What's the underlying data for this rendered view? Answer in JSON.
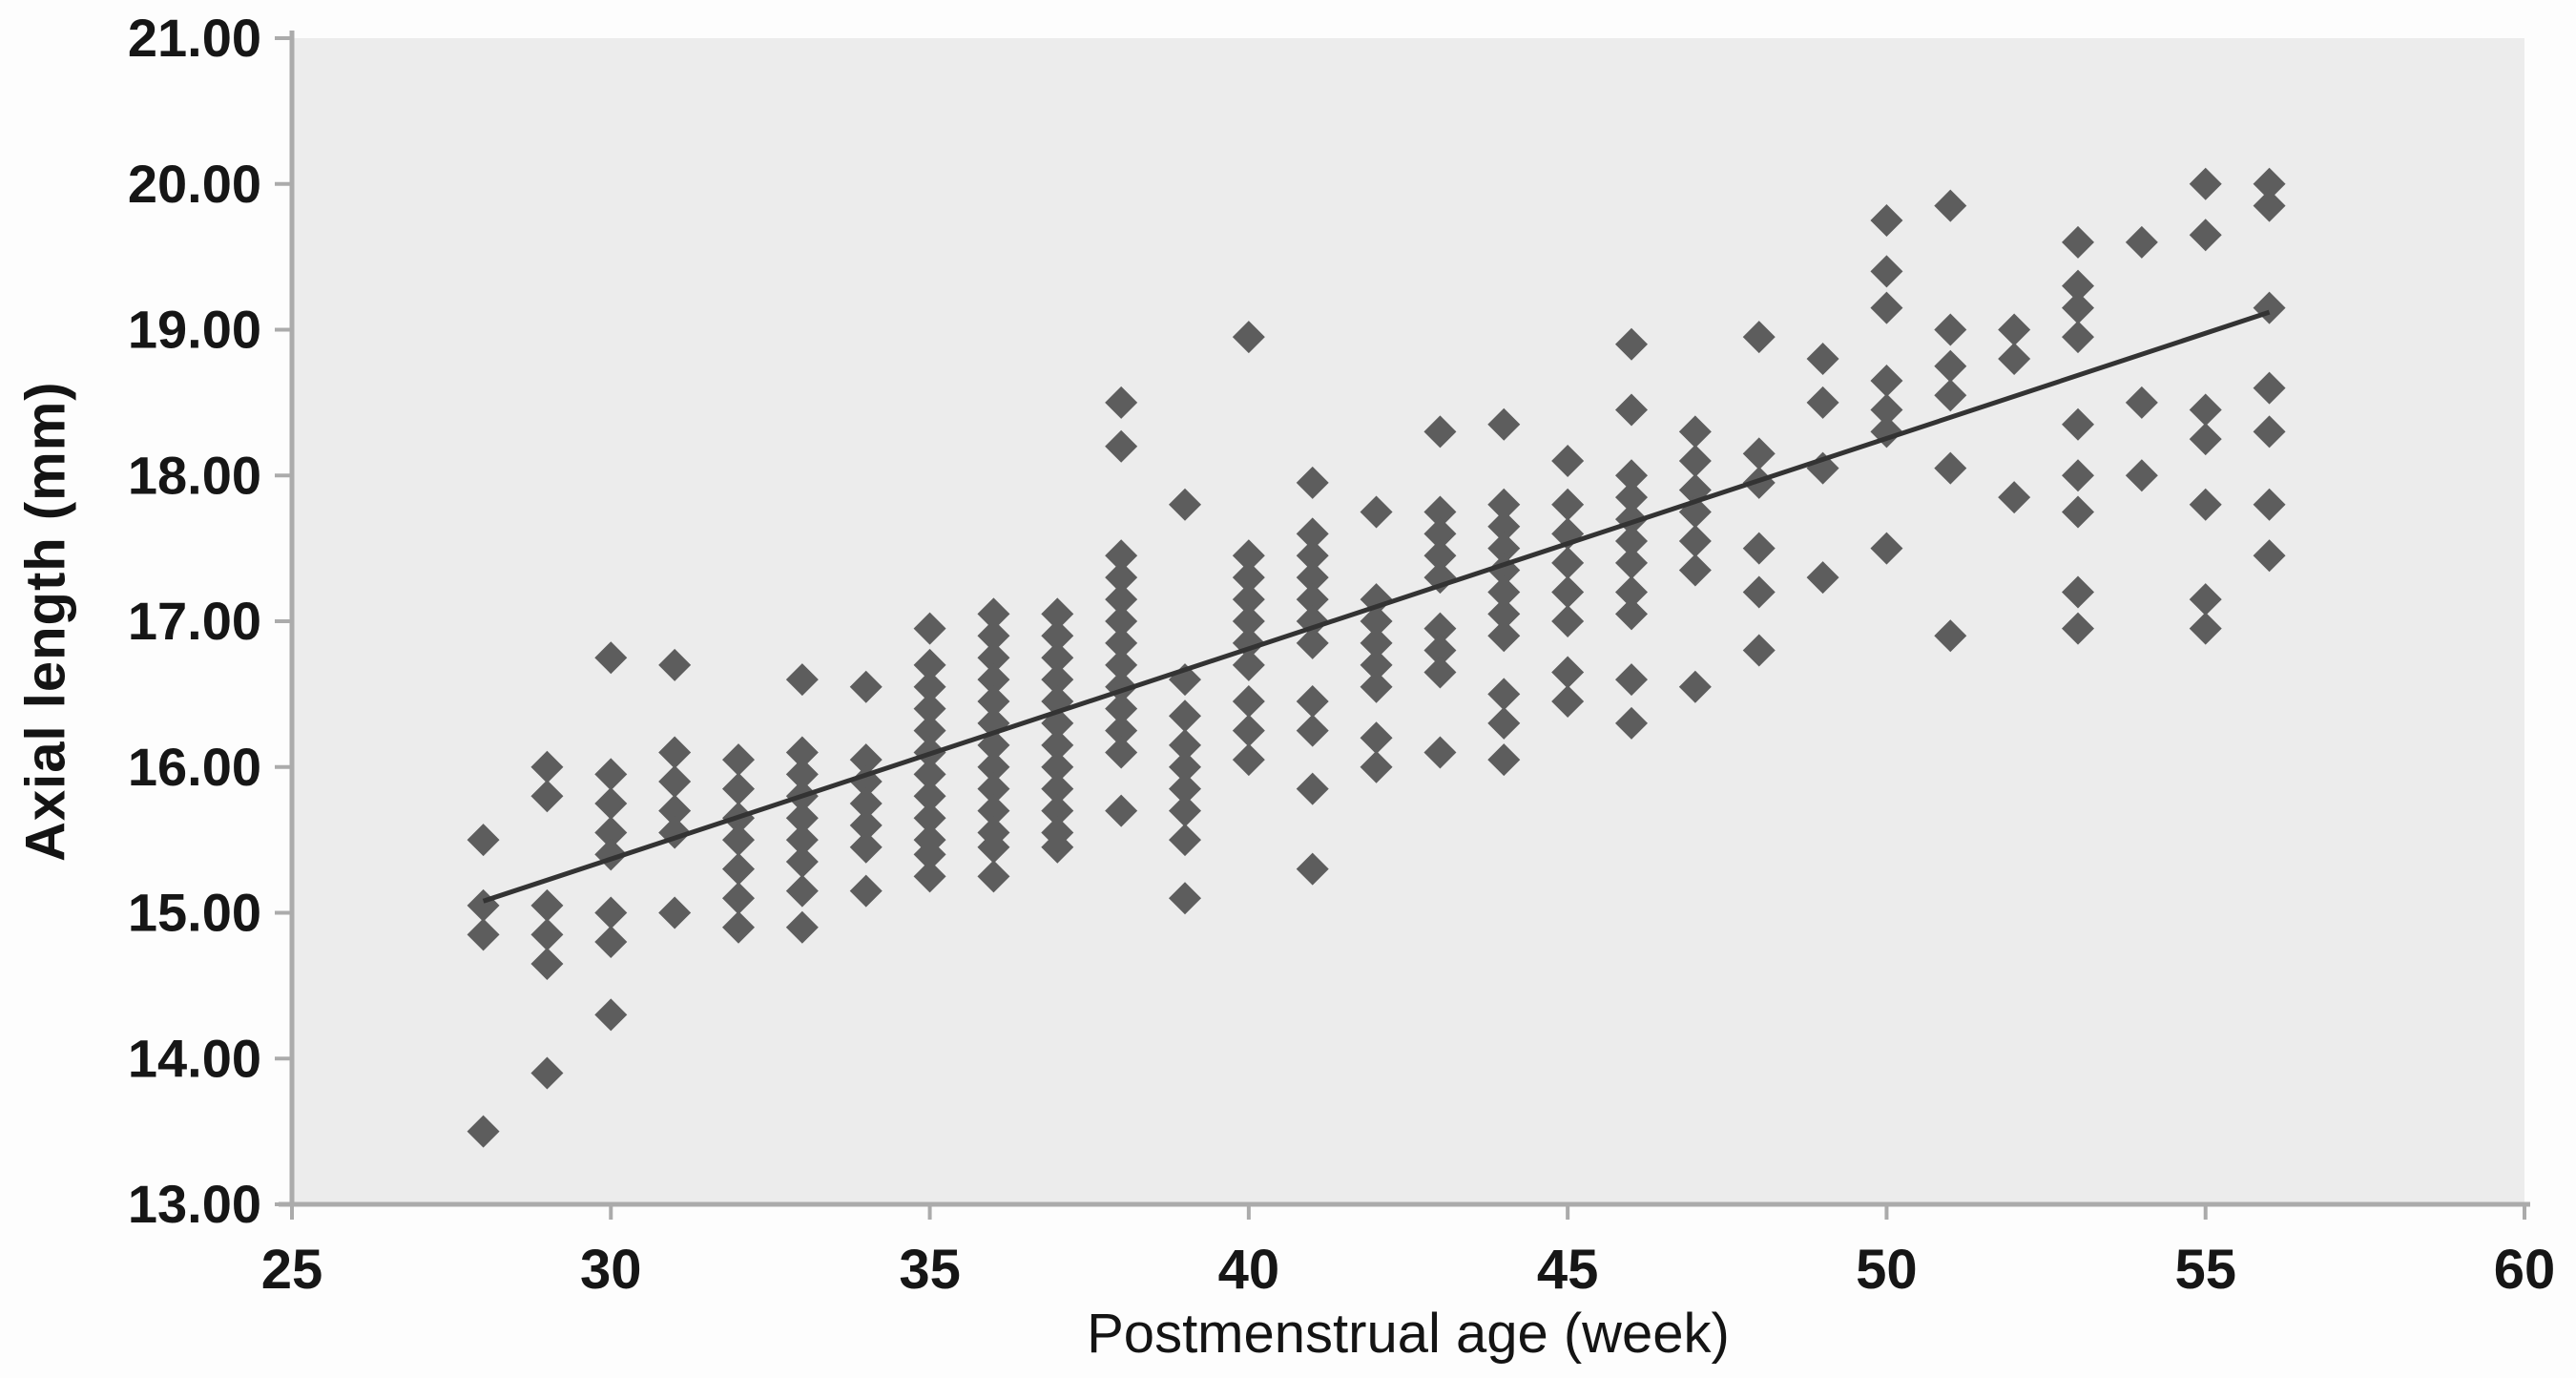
{
  "chart_data": {
    "type": "scatter",
    "title": "",
    "xlabel": "Postmenstrual age (week)",
    "ylabel": "Axial length (mm)",
    "xlim": [
      25,
      60
    ],
    "ylim": [
      13,
      21
    ],
    "grid": false,
    "legend": false,
    "x_ticks": [
      "25",
      "30",
      "35",
      "40",
      "45",
      "50",
      "55",
      "60"
    ],
    "x_tick_values": [
      25,
      30,
      35,
      40,
      45,
      50,
      55,
      60
    ],
    "y_ticks": [
      "21.00",
      "20.00",
      "19.00",
      "18.00",
      "17.00",
      "16.00",
      "15.00",
      "14.00",
      "13.00"
    ],
    "y_tick_values": [
      21,
      20,
      19,
      18,
      17,
      16,
      15,
      14,
      13
    ],
    "colors": {
      "marker": "#5d5d5d",
      "trend_line": "#333333",
      "plot_bg": "#ececec",
      "axis": "#ababab",
      "tick_label": "#161616"
    },
    "trend_line": {
      "x1": 28,
      "y1": 15.08,
      "x2": 56,
      "y2": 19.12,
      "color": "#333333"
    },
    "series": [
      {
        "name": "axial-length-measurements",
        "marker": "diamond",
        "color": "#5d5d5d",
        "points": [
          [
            28,
            15.5
          ],
          [
            28,
            15.05
          ],
          [
            28,
            14.85
          ],
          [
            28,
            13.5
          ],
          [
            29,
            16.0
          ],
          [
            29,
            15.8
          ],
          [
            29,
            15.05
          ],
          [
            29,
            14.85
          ],
          [
            29,
            14.65
          ],
          [
            29,
            13.9
          ],
          [
            30,
            16.75
          ],
          [
            30,
            15.95
          ],
          [
            30,
            15.75
          ],
          [
            30,
            15.55
          ],
          [
            30,
            15.4
          ],
          [
            30,
            15.0
          ],
          [
            30,
            14.8
          ],
          [
            30,
            14.3
          ],
          [
            31,
            16.7
          ],
          [
            31,
            16.1
          ],
          [
            31,
            15.9
          ],
          [
            31,
            15.7
          ],
          [
            31,
            15.55
          ],
          [
            31,
            15.0
          ],
          [
            32,
            16.05
          ],
          [
            32,
            15.85
          ],
          [
            32,
            15.65
          ],
          [
            32,
            15.5
          ],
          [
            32,
            15.3
          ],
          [
            32,
            15.1
          ],
          [
            32,
            14.9
          ],
          [
            33,
            16.6
          ],
          [
            33,
            16.1
          ],
          [
            33,
            15.95
          ],
          [
            33,
            15.8
          ],
          [
            33,
            15.65
          ],
          [
            33,
            15.5
          ],
          [
            33,
            15.35
          ],
          [
            33,
            15.15
          ],
          [
            33,
            14.9
          ],
          [
            34,
            16.55
          ],
          [
            34,
            16.05
          ],
          [
            34,
            15.9
          ],
          [
            34,
            15.75
          ],
          [
            34,
            15.6
          ],
          [
            34,
            15.45
          ],
          [
            34,
            15.15
          ],
          [
            35,
            16.95
          ],
          [
            35,
            16.7
          ],
          [
            35,
            16.55
          ],
          [
            35,
            16.4
          ],
          [
            35,
            16.25
          ],
          [
            35,
            16.1
          ],
          [
            35,
            15.95
          ],
          [
            35,
            15.8
          ],
          [
            35,
            15.65
          ],
          [
            35,
            15.5
          ],
          [
            35,
            15.4
          ],
          [
            35,
            15.25
          ],
          [
            36,
            17.05
          ],
          [
            36,
            16.9
          ],
          [
            36,
            16.75
          ],
          [
            36,
            16.6
          ],
          [
            36,
            16.45
          ],
          [
            36,
            16.3
          ],
          [
            36,
            16.15
          ],
          [
            36,
            16.0
          ],
          [
            36,
            15.85
          ],
          [
            36,
            15.7
          ],
          [
            36,
            15.55
          ],
          [
            36,
            15.45
          ],
          [
            36,
            15.25
          ],
          [
            37,
            17.05
          ],
          [
            37,
            16.9
          ],
          [
            37,
            16.75
          ],
          [
            37,
            16.6
          ],
          [
            37,
            16.45
          ],
          [
            37,
            16.3
          ],
          [
            37,
            16.15
          ],
          [
            37,
            16.0
          ],
          [
            37,
            15.85
          ],
          [
            37,
            15.7
          ],
          [
            37,
            15.55
          ],
          [
            37,
            15.45
          ],
          [
            38,
            18.5
          ],
          [
            38,
            18.2
          ],
          [
            38,
            17.45
          ],
          [
            38,
            17.3
          ],
          [
            38,
            17.15
          ],
          [
            38,
            17.0
          ],
          [
            38,
            16.85
          ],
          [
            38,
            16.7
          ],
          [
            38,
            16.55
          ],
          [
            38,
            16.4
          ],
          [
            38,
            16.25
          ],
          [
            38,
            16.1
          ],
          [
            38,
            15.7
          ],
          [
            39,
            17.8
          ],
          [
            39,
            16.6
          ],
          [
            39,
            16.35
          ],
          [
            39,
            16.15
          ],
          [
            39,
            16.0
          ],
          [
            39,
            15.85
          ],
          [
            39,
            15.7
          ],
          [
            39,
            15.5
          ],
          [
            39,
            15.1
          ],
          [
            40,
            18.95
          ],
          [
            40,
            17.45
          ],
          [
            40,
            17.3
          ],
          [
            40,
            17.15
          ],
          [
            40,
            17.0
          ],
          [
            40,
            16.85
          ],
          [
            40,
            16.7
          ],
          [
            40,
            16.45
          ],
          [
            40,
            16.25
          ],
          [
            40,
            16.05
          ],
          [
            41,
            17.95
          ],
          [
            41,
            17.6
          ],
          [
            41,
            17.45
          ],
          [
            41,
            17.3
          ],
          [
            41,
            17.15
          ],
          [
            41,
            17.0
          ],
          [
            41,
            16.85
          ],
          [
            41,
            16.45
          ],
          [
            41,
            16.25
          ],
          [
            41,
            15.85
          ],
          [
            41,
            15.3
          ],
          [
            42,
            17.75
          ],
          [
            42,
            17.15
          ],
          [
            42,
            17.0
          ],
          [
            42,
            16.85
          ],
          [
            42,
            16.7
          ],
          [
            42,
            16.55
          ],
          [
            42,
            16.2
          ],
          [
            42,
            16.0
          ],
          [
            43,
            18.3
          ],
          [
            43,
            17.75
          ],
          [
            43,
            17.6
          ],
          [
            43,
            17.45
          ],
          [
            43,
            17.3
          ],
          [
            43,
            16.95
          ],
          [
            43,
            16.8
          ],
          [
            43,
            16.65
          ],
          [
            43,
            16.1
          ],
          [
            44,
            18.35
          ],
          [
            44,
            17.8
          ],
          [
            44,
            17.65
          ],
          [
            44,
            17.5
          ],
          [
            44,
            17.35
          ],
          [
            44,
            17.2
          ],
          [
            44,
            17.05
          ],
          [
            44,
            16.9
          ],
          [
            44,
            16.5
          ],
          [
            44,
            16.3
          ],
          [
            44,
            16.05
          ],
          [
            45,
            18.1
          ],
          [
            45,
            17.8
          ],
          [
            45,
            17.6
          ],
          [
            45,
            17.4
          ],
          [
            45,
            17.2
          ],
          [
            45,
            17.0
          ],
          [
            45,
            16.65
          ],
          [
            45,
            16.45
          ],
          [
            46,
            18.9
          ],
          [
            46,
            18.45
          ],
          [
            46,
            18.0
          ],
          [
            46,
            17.85
          ],
          [
            46,
            17.7
          ],
          [
            46,
            17.55
          ],
          [
            46,
            17.4
          ],
          [
            46,
            17.2
          ],
          [
            46,
            17.05
          ],
          [
            46,
            16.6
          ],
          [
            46,
            16.3
          ],
          [
            47,
            18.3
          ],
          [
            47,
            18.1
          ],
          [
            47,
            17.9
          ],
          [
            47,
            17.75
          ],
          [
            47,
            17.55
          ],
          [
            47,
            17.35
          ],
          [
            47,
            16.55
          ],
          [
            48,
            18.95
          ],
          [
            48,
            18.15
          ],
          [
            48,
            17.95
          ],
          [
            48,
            17.5
          ],
          [
            48,
            17.2
          ],
          [
            48,
            16.8
          ],
          [
            49,
            18.8
          ],
          [
            49,
            18.5
          ],
          [
            49,
            18.05
          ],
          [
            49,
            17.3
          ],
          [
            50,
            19.75
          ],
          [
            50,
            19.4
          ],
          [
            50,
            19.15
          ],
          [
            50,
            18.65
          ],
          [
            50,
            18.45
          ],
          [
            50,
            18.3
          ],
          [
            50,
            17.5
          ],
          [
            51,
            19.85
          ],
          [
            51,
            19.0
          ],
          [
            51,
            18.75
          ],
          [
            51,
            18.55
          ],
          [
            51,
            18.05
          ],
          [
            51,
            16.9
          ],
          [
            52,
            19.0
          ],
          [
            52,
            18.8
          ],
          [
            52,
            17.85
          ],
          [
            53,
            19.6
          ],
          [
            53,
            19.3
          ],
          [
            53,
            19.15
          ],
          [
            53,
            18.95
          ],
          [
            53,
            18.35
          ],
          [
            53,
            18.0
          ],
          [
            53,
            17.75
          ],
          [
            53,
            17.2
          ],
          [
            53,
            16.95
          ],
          [
            54,
            19.6
          ],
          [
            54,
            18.5
          ],
          [
            54,
            18.0
          ],
          [
            55,
            20.0
          ],
          [
            55,
            19.65
          ],
          [
            55,
            18.45
          ],
          [
            55,
            18.25
          ],
          [
            55,
            17.8
          ],
          [
            55,
            17.15
          ],
          [
            55,
            16.95
          ],
          [
            56,
            20.0
          ],
          [
            56,
            19.85
          ],
          [
            56,
            19.15
          ],
          [
            56,
            18.6
          ],
          [
            56,
            18.3
          ],
          [
            56,
            17.8
          ],
          [
            56,
            17.45
          ]
        ]
      }
    ]
  }
}
